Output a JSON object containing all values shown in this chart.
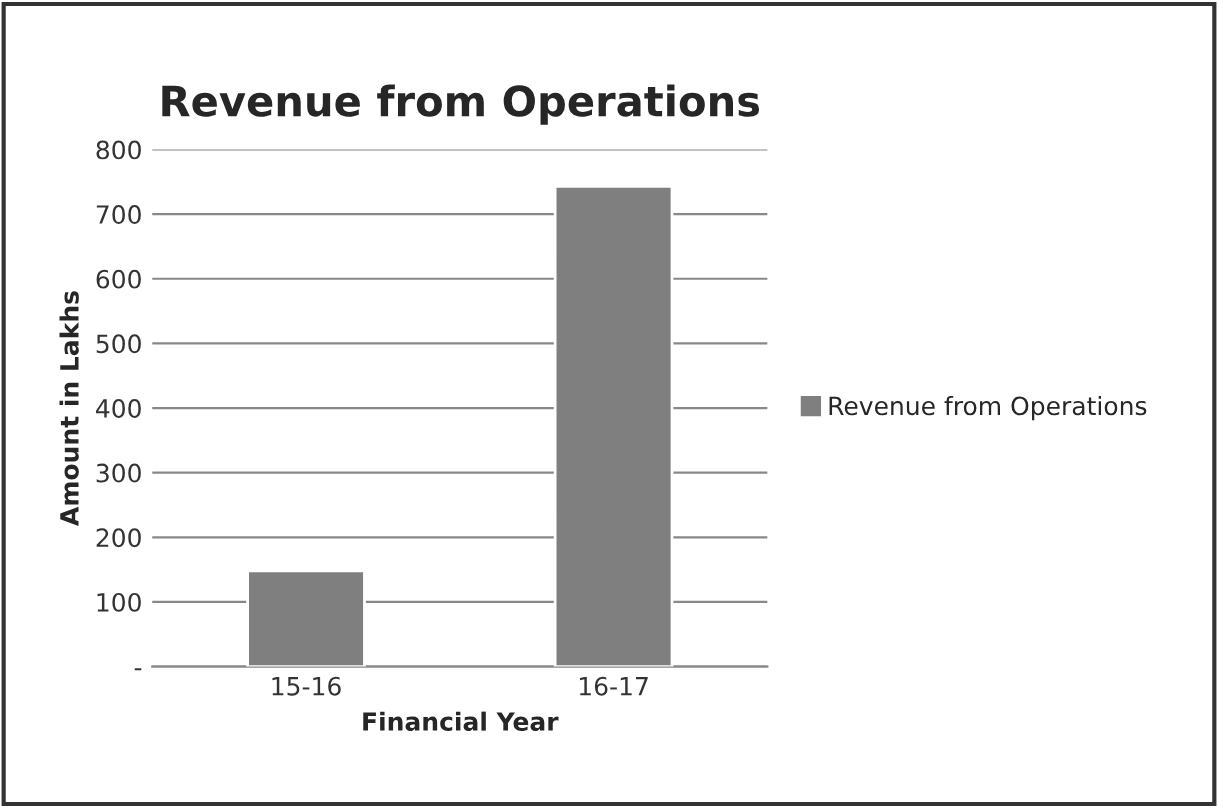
{
  "chart_data": {
    "type": "bar",
    "title": "Revenue from Operations",
    "xlabel": "Financial Year",
    "ylabel": "Amount in Lakhs",
    "categories": [
      "15-16",
      "16-17"
    ],
    "series": [
      {
        "name": "Revenue from Operations",
        "color": "#7f7f7f",
        "values": [
          148,
          743
        ]
      }
    ],
    "ylim": [
      0,
      800
    ],
    "yticks": [
      {
        "value": 0,
        "label": "-"
      },
      100,
      200,
      300,
      400,
      500,
      600,
      700,
      800
    ],
    "grid": "y",
    "legend": "right"
  }
}
